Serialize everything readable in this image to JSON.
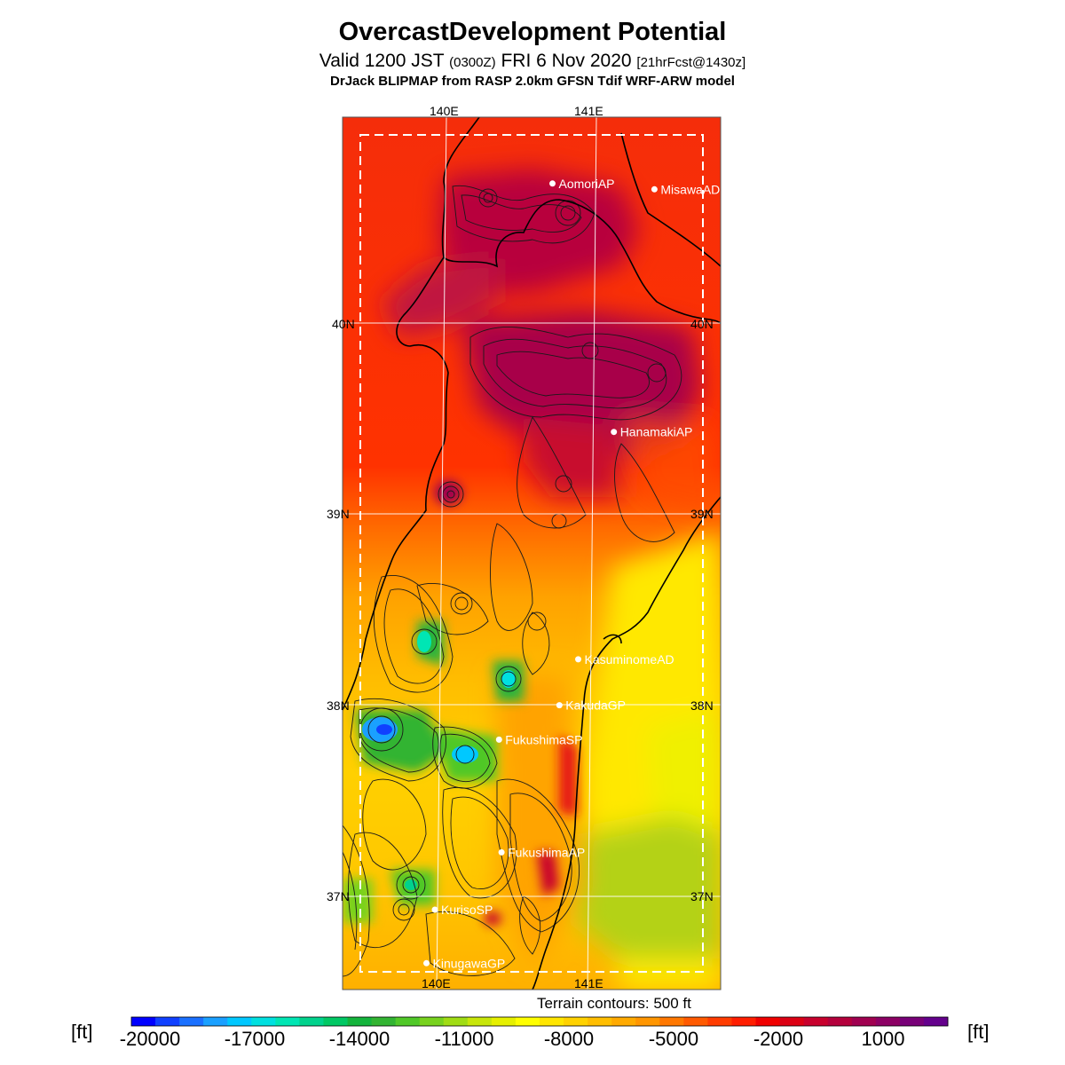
{
  "title": "OvercastDevelopment Potential",
  "subtitle": {
    "valid_prefix": "Valid 1200 JST",
    "zulu": "(0300Z)",
    "date": "FRI 6 Nov 2020",
    "forecast": "[21hrFcst@1430z]"
  },
  "model_line": "DrJack BLIPMAP from RASP 2.0km GFSN Tdif WRF-ARW model",
  "map": {
    "lon_labels": [
      "140E",
      "141E"
    ],
    "lat_labels": [
      "40N",
      "39N",
      "38N",
      "37N"
    ],
    "stations": [
      {
        "name": "AomoriAP",
        "lon": 140.69,
        "lat": 40.73
      },
      {
        "name": "MisawaAD",
        "lon": 141.37,
        "lat": 40.7
      },
      {
        "name": "HanamakiAP",
        "lon": 141.13,
        "lat": 39.43
      },
      {
        "name": "KasuminomeAD",
        "lon": 140.92,
        "lat": 38.24
      },
      {
        "name": "KakudaGP",
        "lon": 140.8,
        "lat": 38.0
      },
      {
        "name": "FukushimaSP",
        "lon": 140.4,
        "lat": 37.82
      },
      {
        "name": "FukushimaAP",
        "lon": 140.43,
        "lat": 37.23
      },
      {
        "name": "KurisoSP",
        "lon": 139.99,
        "lat": 36.93
      },
      {
        "name": "KinugawaGP",
        "lon": 139.94,
        "lat": 36.65
      }
    ],
    "terrain_note": "Terrain contours: 500 ft"
  },
  "colorbar": {
    "unit": "[ft]",
    "ticks": [
      "-20000",
      "-17000",
      "-14000",
      "-11000",
      "-8000",
      "-5000",
      "-2000",
      "1000"
    ],
    "colors": [
      "#0000ff",
      "#1040ff",
      "#1a70ff",
      "#1aa0ff",
      "#00c8ff",
      "#00e0e0",
      "#00e6b4",
      "#00d28c",
      "#00c864",
      "#14b43c",
      "#32b432",
      "#50c828",
      "#78d21e",
      "#a0dc14",
      "#c8e60a",
      "#e6f000",
      "#ffff00",
      "#ffe600",
      "#ffd200",
      "#ffbe00",
      "#ffaa00",
      "#ff9600",
      "#ff7800",
      "#ff5a00",
      "#ff3c00",
      "#ff1e00",
      "#f00000",
      "#dc0014",
      "#c8002d",
      "#b4003c",
      "#a00050",
      "#8c0064",
      "#780078",
      "#64008c"
    ]
  }
}
